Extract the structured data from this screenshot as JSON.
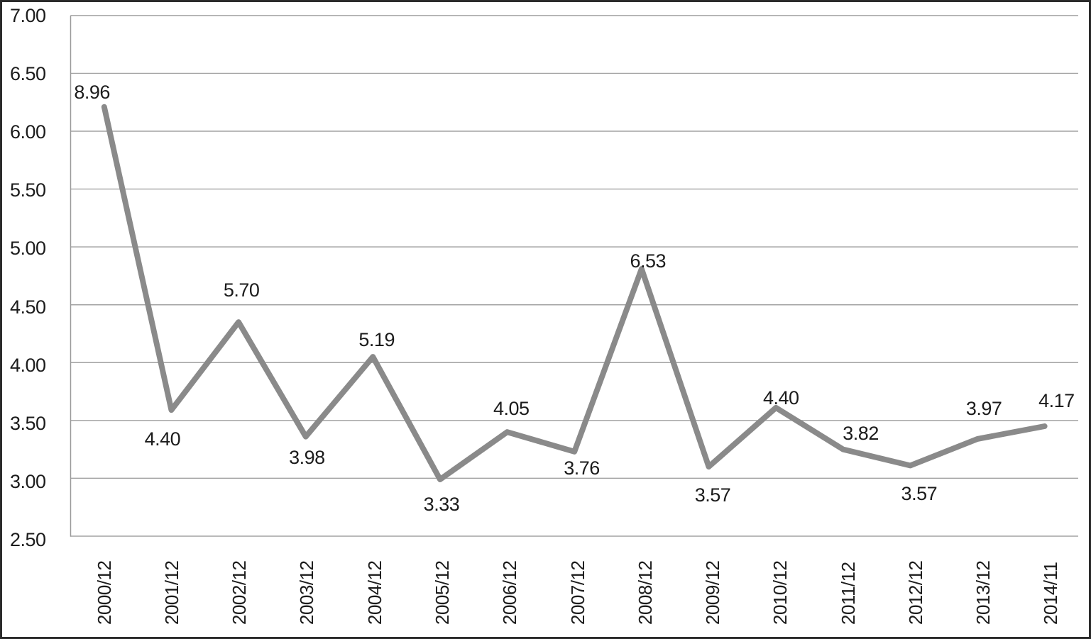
{
  "chart_data": {
    "type": "line",
    "title": "",
    "xlabel": "",
    "ylabel": "",
    "grid": true,
    "legend": false,
    "y_axis": {
      "min": 2.5,
      "max": 7.0,
      "step": 0.5,
      "tick_labels": [
        "7.00",
        "6.50",
        "6.00",
        "5.50",
        "5.00",
        "4.50",
        "4.00",
        "3.50",
        "3.00",
        "2.50"
      ]
    },
    "categories": [
      "2000/12",
      "2001/12",
      "2002/12",
      "2003/12",
      "2004/12",
      "2005/12",
      "2006/12",
      "2007/12",
      "2008/12",
      "2009/12",
      "2010/12",
      "2011/12",
      "2012/12",
      "2013/12",
      "2014/11"
    ],
    "series": [
      {
        "name": "value",
        "values": [
          8.96,
          4.4,
          5.7,
          3.98,
          5.19,
          3.33,
          4.05,
          3.76,
          6.53,
          3.57,
          4.4,
          3.82,
          3.57,
          3.97,
          4.17
        ],
        "data_labels": [
          "8.96",
          "4.40",
          "5.70",
          "3.98",
          "5.19",
          "3.33",
          "4.05",
          "3.76",
          "6.53",
          "3.57",
          "4.40",
          "3.82",
          "3.57",
          "3.97",
          "4.17"
        ],
        "plotted_values": [
          6.21,
          3.59,
          4.35,
          3.36,
          4.05,
          2.99,
          3.4,
          3.23,
          4.81,
          3.1,
          3.61,
          3.25,
          3.11,
          3.34,
          3.45
        ],
        "label_sides": [
          "above",
          "below",
          "above",
          "below",
          "above",
          "below",
          "above",
          "below",
          "above",
          "below",
          "above",
          "above",
          "below",
          "above",
          "above"
        ],
        "label_offsets": [
          [
            -16,
            -22
          ],
          [
            -12,
            37
          ],
          [
            4,
            -48
          ],
          [
            1,
            25
          ],
          [
            4,
            -27
          ],
          [
            0,
            30
          ],
          [
            3,
            -37
          ],
          [
            7,
            19
          ],
          [
            5,
            -14
          ],
          [
            1,
            36
          ],
          [
            2,
            -18
          ],
          [
            19,
            -27
          ],
          [
            6,
            35
          ],
          [
            2,
            -47
          ],
          [
            9,
            -40
          ]
        ]
      }
    ],
    "colors": {
      "line": "#8a8a8a",
      "gridline": "#a3a3a3",
      "axis_line": "#9a9a9a",
      "text": "#1c1c1c",
      "background": "#ffffff",
      "frame_border": "#2b2b2b"
    }
  }
}
